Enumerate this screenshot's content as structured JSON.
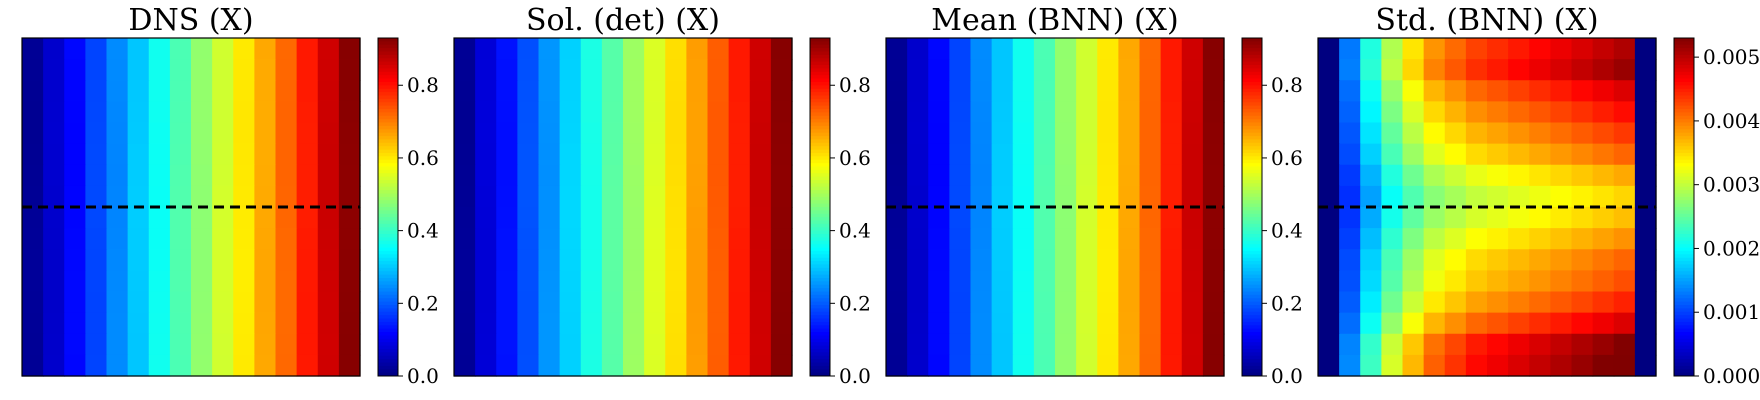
{
  "chart_data": [
    {
      "type": "heatmap",
      "title": "DNS (X)",
      "grid": {
        "rows": 16,
        "cols": 16
      },
      "colormap": "jet",
      "colorbar": {
        "range": [
          0.0,
          0.93
        ],
        "ticks": [
          0.0,
          0.2,
          0.4,
          0.6,
          0.8
        ],
        "tick_labels": [
          "0.0",
          "0.2",
          "0.4",
          "0.6",
          "0.8"
        ]
      },
      "column_values": [
        0.02,
        0.07,
        0.12,
        0.18,
        0.24,
        0.3,
        0.36,
        0.42,
        0.48,
        0.54,
        0.6,
        0.66,
        0.72,
        0.79,
        0.86,
        0.92
      ],
      "reference_line_y": 0.5
    },
    {
      "type": "heatmap",
      "title": "Sol. (det) (X)",
      "grid": {
        "rows": 16,
        "cols": 16
      },
      "colormap": "jet",
      "colorbar": {
        "range": [
          0.0,
          0.93
        ],
        "ticks": [
          0.0,
          0.2,
          0.4,
          0.6,
          0.8
        ],
        "tick_labels": [
          "0.0",
          "0.2",
          "0.4",
          "0.6",
          "0.8"
        ]
      },
      "column_values": [
        0.02,
        0.08,
        0.13,
        0.19,
        0.25,
        0.31,
        0.37,
        0.43,
        0.49,
        0.55,
        0.61,
        0.67,
        0.73,
        0.79,
        0.86,
        0.92
      ]
    },
    {
      "type": "heatmap",
      "title": "Mean (BNN) (X)",
      "grid": {
        "rows": 16,
        "cols": 16
      },
      "colormap": "jet",
      "colorbar": {
        "range": [
          0.0,
          0.93
        ],
        "ticks": [
          0.0,
          0.2,
          0.4,
          0.6,
          0.8
        ],
        "tick_labels": [
          "0.0",
          "0.2",
          "0.4",
          "0.6",
          "0.8"
        ]
      },
      "column_values": [
        0.02,
        0.07,
        0.12,
        0.18,
        0.24,
        0.3,
        0.36,
        0.42,
        0.48,
        0.54,
        0.6,
        0.66,
        0.72,
        0.79,
        0.86,
        0.92
      ],
      "reference_line_y": 0.5
    },
    {
      "type": "heatmap",
      "title": "Std. (BNN) (X)",
      "grid": {
        "rows": 16,
        "cols": 16
      },
      "colormap": "jet",
      "colorbar": {
        "range": [
          0.0,
          0.0053
        ],
        "ticks": [
          0.0,
          0.001,
          0.002,
          0.003,
          0.004,
          0.005
        ],
        "tick_labels": [
          "0.000",
          "0.001",
          "0.002",
          "0.003",
          "0.004",
          "0.005"
        ]
      },
      "column_profile": [
        0.0,
        0.0012,
        0.002,
        0.0027,
        0.0032,
        0.0036,
        0.0038,
        0.004,
        0.0041,
        0.0042,
        0.0043,
        0.0044,
        0.0045,
        0.0046,
        0.0047,
        0.0
      ],
      "row_profile": [
        0.0043,
        0.0044,
        0.0041,
        0.0039,
        0.0037,
        0.0035,
        0.0032,
        0.003,
        0.0031,
        0.0033,
        0.0035,
        0.0036,
        0.0038,
        0.0041,
        0.0045,
        0.0046
      ],
      "reference_line_y": 0.5
    }
  ]
}
